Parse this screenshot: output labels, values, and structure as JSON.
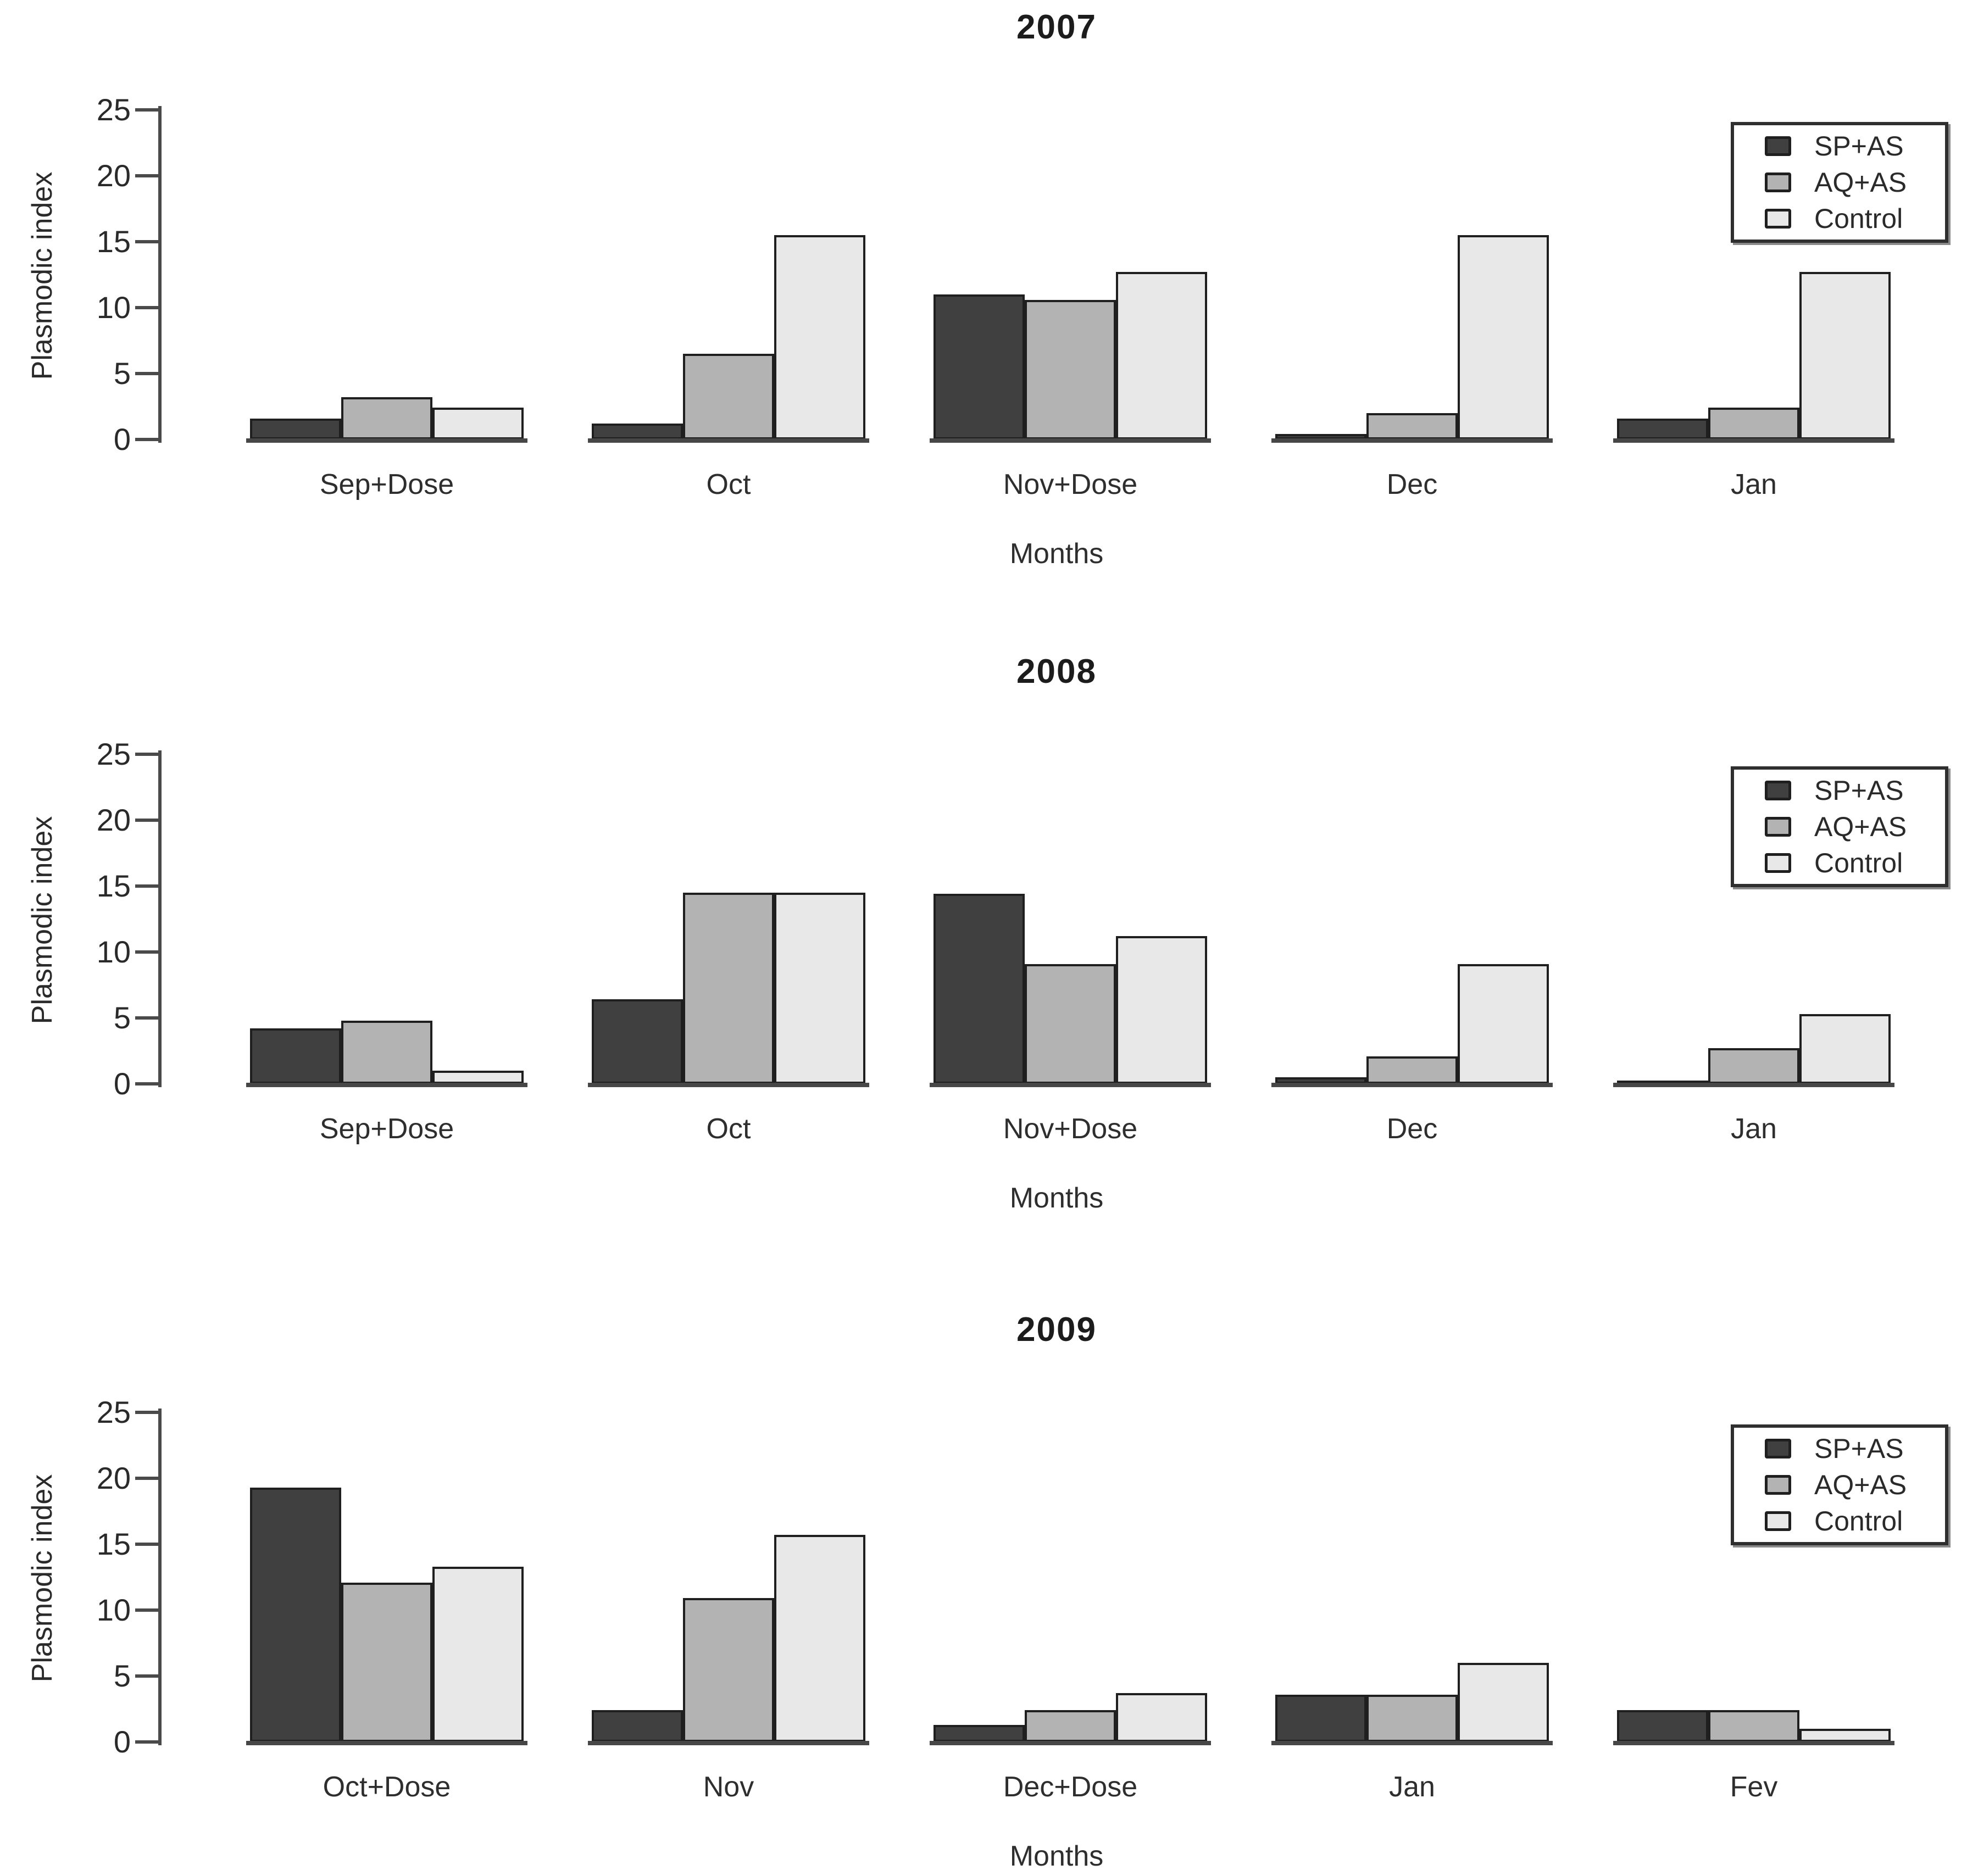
{
  "figure": {
    "background": "#ffffff",
    "text_color": "#2a2a2a",
    "axis_color": "#4a4a4a",
    "bar_border_color": "#1f1f1f"
  },
  "chart_data": [
    {
      "type": "bar",
      "title": "2007",
      "xlabel": "Months",
      "ylabel": "Plasmodic index",
      "ylim": [
        0,
        25
      ],
      "yticks": [
        0,
        5,
        10,
        15,
        20,
        25
      ],
      "grid": false,
      "legend_position": "top-right",
      "categories": [
        "Sep+Dose",
        "Oct",
        "Nov+Dose",
        "Dec",
        "Jan"
      ],
      "series": [
        {
          "name": "SP+AS",
          "values": [
            1.6,
            1.2,
            11.0,
            0.4,
            1.6
          ]
        },
        {
          "name": "AQ+AS",
          "values": [
            3.2,
            6.5,
            10.6,
            2.0,
            2.4
          ]
        },
        {
          "name": "Control",
          "values": [
            2.4,
            15.5,
            12.7,
            15.5,
            12.7
          ]
        }
      ],
      "legend": [
        "SP+AS",
        "AQ+AS",
        "Control"
      ],
      "colors": {
        "SP+AS": "#404040",
        "AQ+AS": "#b3b3b3",
        "Control": "#e8e8e8"
      }
    },
    {
      "type": "bar",
      "title": "2008",
      "xlabel": "Months",
      "ylabel": "Plasmodic index",
      "ylim": [
        0,
        25
      ],
      "yticks": [
        0,
        5,
        10,
        15,
        20,
        25
      ],
      "grid": false,
      "legend_position": "top-right",
      "categories": [
        "Sep+Dose",
        "Oct",
        "Nov+Dose",
        "Dec",
        "Jan"
      ],
      "series": [
        {
          "name": "SP+AS",
          "values": [
            4.2,
            6.4,
            14.4,
            0.5,
            0.1
          ]
        },
        {
          "name": "AQ+AS",
          "values": [
            4.8,
            14.5,
            9.1,
            2.1,
            2.7
          ]
        },
        {
          "name": "Control",
          "values": [
            1.0,
            14.5,
            11.2,
            9.1,
            5.3
          ]
        }
      ],
      "legend": [
        "SP+AS",
        "AQ+AS",
        "Control"
      ],
      "colors": {
        "SP+AS": "#404040",
        "AQ+AS": "#b3b3b3",
        "Control": "#e8e8e8"
      }
    },
    {
      "type": "bar",
      "title": "2009",
      "xlabel": "Months",
      "ylabel": "Plasmodic index",
      "ylim": [
        0,
        25
      ],
      "yticks": [
        0,
        5,
        10,
        15,
        20,
        25
      ],
      "grid": false,
      "legend_position": "top-right",
      "categories": [
        "Oct+Dose",
        "Nov",
        "Dec+Dose",
        "Jan",
        "Fev"
      ],
      "series": [
        {
          "name": "SP+AS",
          "values": [
            19.3,
            2.4,
            1.3,
            3.6,
            2.4
          ]
        },
        {
          "name": "AQ+AS",
          "values": [
            12.1,
            10.9,
            2.4,
            3.6,
            2.4
          ]
        },
        {
          "name": "Control",
          "values": [
            13.3,
            15.7,
            3.7,
            6.0,
            1.0
          ]
        }
      ],
      "legend": [
        "SP+AS",
        "AQ+AS",
        "Control"
      ],
      "colors": {
        "SP+AS": "#404040",
        "AQ+AS": "#b3b3b3",
        "Control": "#e8e8e8"
      }
    }
  ]
}
